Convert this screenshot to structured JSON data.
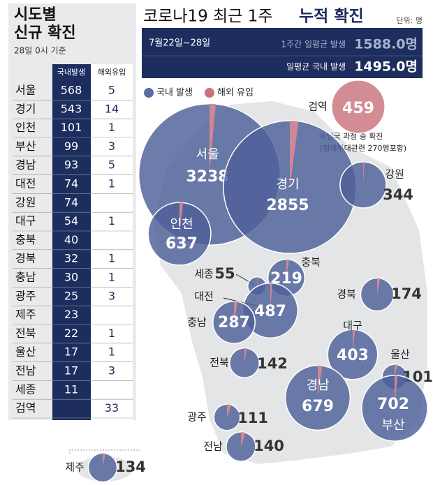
{
  "header": {
    "title_a": "코로나19 최근 1주",
    "title_b": "누적 확진",
    "unit": "단위: 명",
    "period": "7월22일~28일",
    "stats": [
      {
        "label": "1주간 일평균 발생",
        "value": "1588.0명"
      },
      {
        "label": "일평균 국내 발생",
        "value": "1495.0명"
      }
    ]
  },
  "legend": [
    "국내 발생",
    "해외 유입"
  ],
  "note": [
    "※입국 과정 중 확진",
    "(청해부대관련 270명포함)"
  ],
  "table": {
    "title": [
      "시도별",
      "신규 확진"
    ],
    "subtitle": "28일 0시 기준",
    "columns": [
      "국내발생",
      "해외유입"
    ],
    "rows": [
      [
        "서울",
        568,
        5
      ],
      [
        "경기",
        543,
        14
      ],
      [
        "인천",
        101,
        1
      ],
      [
        "부산",
        99,
        3
      ],
      [
        "경남",
        93,
        5
      ],
      [
        "대전",
        74,
        1
      ],
      [
        "강원",
        74,
        null
      ],
      [
        "대구",
        54,
        1
      ],
      [
        "충북",
        40,
        null
      ],
      [
        "경북",
        32,
        1
      ],
      [
        "충남",
        30,
        1
      ],
      [
        "광주",
        25,
        3
      ],
      [
        "제주",
        23,
        null
      ],
      [
        "전북",
        22,
        1
      ],
      [
        "울산",
        17,
        1
      ],
      [
        "전남",
        17,
        3
      ],
      [
        "세종",
        11,
        null
      ],
      [
        "검역",
        null,
        33
      ]
    ]
  },
  "bubbles": [
    {
      "label": "서울",
      "total": 3238,
      "overseas": 45
    },
    {
      "label": "경기",
      "total": 2855,
      "overseas": 60
    },
    {
      "label": "인천",
      "total": 637,
      "overseas": 12
    },
    {
      "label": "강원",
      "total": 344,
      "overseas": 3
    },
    {
      "label": "검역",
      "total": 459,
      "overseas": 459
    },
    {
      "label": "충북",
      "total": 219,
      "overseas": 5
    },
    {
      "label": "세종",
      "total": 55,
      "overseas": 1
    },
    {
      "label": "대전",
      "total": 487,
      "overseas": 6
    },
    {
      "label": "충남",
      "total": 287,
      "overseas": 8
    },
    {
      "label": "경북",
      "total": 174,
      "overseas": 5
    },
    {
      "label": "대구",
      "total": 403,
      "overseas": 6
    },
    {
      "label": "전북",
      "total": 142,
      "overseas": 4
    },
    {
      "label": "울산",
      "total": 101,
      "overseas": 4
    },
    {
      "label": "경남",
      "total": 679,
      "overseas": 15
    },
    {
      "label": "부산",
      "total": 702,
      "overseas": 10
    },
    {
      "label": "광주",
      "total": 111,
      "overseas": 6
    },
    {
      "label": "전남",
      "total": 140,
      "overseas": 7
    },
    {
      "label": "제주",
      "total": 134,
      "overseas": 4
    }
  ]
}
